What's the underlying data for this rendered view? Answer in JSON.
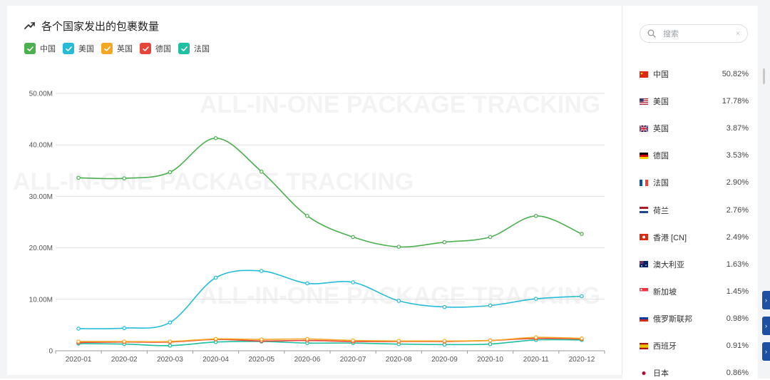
{
  "title": "各个国家发出的包裹数量",
  "legend": [
    {
      "label": "中国",
      "color": "#4caf50"
    },
    {
      "label": "美国",
      "color": "#26bcd7"
    },
    {
      "label": "英国",
      "color": "#f5a623"
    },
    {
      "label": "德国",
      "color": "#e8443a"
    },
    {
      "label": "法国",
      "color": "#1fbf9f"
    }
  ],
  "watermark": "ALL-IN-ONE PACKAGE TRACKING",
  "search": {
    "placeholder": "搜索"
  },
  "countries": [
    {
      "name": "中国",
      "pct": "50.82%",
      "flag": "cn"
    },
    {
      "name": "美国",
      "pct": "17.78%",
      "flag": "us"
    },
    {
      "name": "英国",
      "pct": "3.87%",
      "flag": "gb"
    },
    {
      "name": "德国",
      "pct": "3.53%",
      "flag": "de"
    },
    {
      "name": "法国",
      "pct": "2.90%",
      "flag": "fr"
    },
    {
      "name": "荷兰",
      "pct": "2.76%",
      "flag": "nl"
    },
    {
      "name": "香港 [CN]",
      "pct": "2.49%",
      "flag": "hk"
    },
    {
      "name": "澳大利亚",
      "pct": "1.63%",
      "flag": "au"
    },
    {
      "name": "新加坡",
      "pct": "1.45%",
      "flag": "sg"
    },
    {
      "name": "俄罗斯联邦",
      "pct": "0.98%",
      "flag": "ru"
    },
    {
      "name": "西班牙",
      "pct": "0.91%",
      "flag": "es"
    },
    {
      "name": "日本",
      "pct": "0.86%",
      "flag": "jp"
    }
  ],
  "chart_data": {
    "type": "line",
    "title": "各个国家发出的包裹数量",
    "x": [
      "2020-01",
      "2020-02",
      "2020-03",
      "2020-04",
      "2020-05",
      "2020-06",
      "2020-07",
      "2020-08",
      "2020-09",
      "2020-10",
      "2020-11",
      "2020-12"
    ],
    "ylim": [
      0,
      50000000
    ],
    "yticks": [
      0,
      10000000,
      20000000,
      30000000,
      40000000,
      50000000
    ],
    "ytick_labels": [
      "0",
      "10.00M",
      "20.00M",
      "30.00M",
      "40.00M",
      "50.00M"
    ],
    "grid": true,
    "legend_position": "top-left",
    "series": [
      {
        "name": "中国",
        "color": "#4caf50",
        "values": [
          33600000,
          33500000,
          34700000,
          41300000,
          34800000,
          26200000,
          22100000,
          20200000,
          21100000,
          22100000,
          26200000,
          22700000
        ]
      },
      {
        "name": "美国",
        "color": "#26bcd7",
        "values": [
          4300000,
          4400000,
          5500000,
          14200000,
          15500000,
          13100000,
          13300000,
          9700000,
          8500000,
          8800000,
          10100000,
          10600000
        ]
      },
      {
        "name": "英国",
        "color": "#f5a623",
        "values": [
          1800000,
          1800000,
          1800000,
          2300000,
          2200000,
          2300000,
          2000000,
          1900000,
          1900000,
          2000000,
          2600000,
          2400000
        ]
      },
      {
        "name": "德国",
        "color": "#e8443a",
        "values": [
          1600000,
          1700000,
          1700000,
          2200000,
          1900000,
          2000000,
          1800000,
          1800000,
          1800000,
          2000000,
          2400000,
          2300000
        ]
      },
      {
        "name": "法国",
        "color": "#1fbf9f",
        "values": [
          1400000,
          1300000,
          1000000,
          1700000,
          1800000,
          1500000,
          1500000,
          1300000,
          1200000,
          1300000,
          2100000,
          2100000
        ]
      }
    ]
  }
}
